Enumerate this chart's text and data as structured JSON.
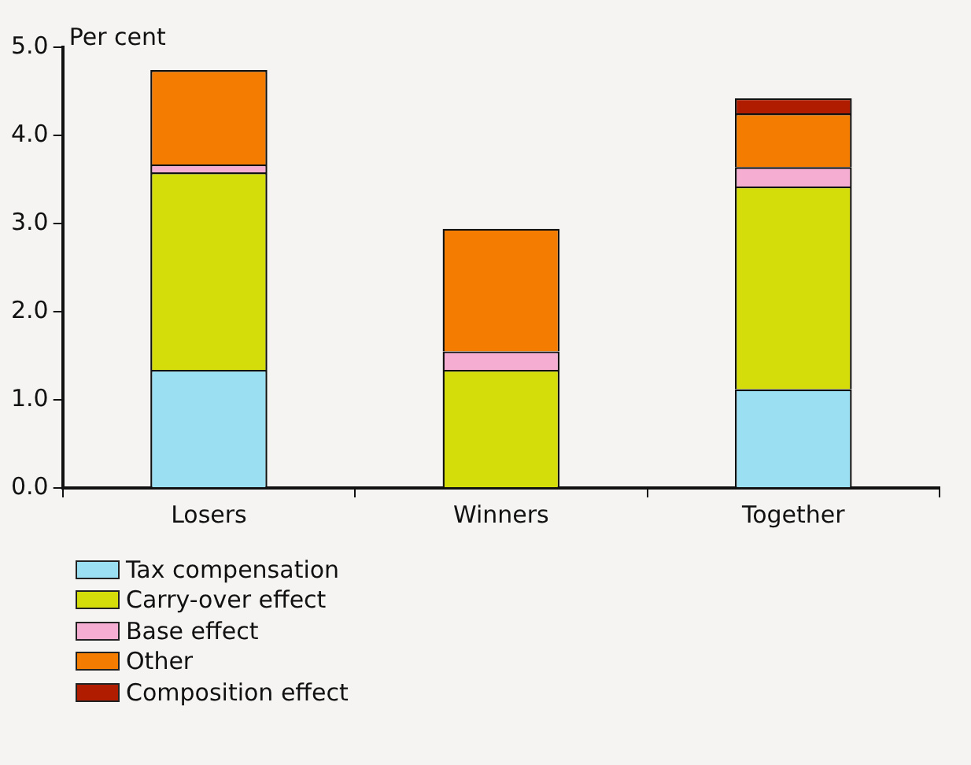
{
  "chart_data": {
    "type": "bar",
    "stacked": true,
    "ylabel": "Per cent",
    "categories": [
      "Losers",
      "Winners",
      "Together"
    ],
    "series": [
      {
        "name": "Tax compensation",
        "color": "#9ae0f2",
        "values": [
          1.34,
          0,
          1.12
        ]
      },
      {
        "name": "Carry-over effect",
        "color": "#d4dc0a",
        "values": [
          2.24,
          1.34,
          2.3
        ]
      },
      {
        "name": "Base effect",
        "color": "#f5aed2",
        "values": [
          0.09,
          0.21,
          0.22
        ]
      },
      {
        "name": "Other",
        "color": "#f47c00",
        "values": [
          1.07,
          1.39,
          0.61
        ]
      },
      {
        "name": "Composition effect",
        "color": "#b01c00",
        "values": [
          0,
          0,
          0.17
        ]
      }
    ],
    "ylim": [
      0,
      5
    ],
    "yticks": [
      {
        "value": 0,
        "label": "0.0"
      },
      {
        "value": 1,
        "label": "1.0"
      },
      {
        "value": 2,
        "label": "2.0"
      },
      {
        "value": 3,
        "label": "3.0"
      },
      {
        "value": 4,
        "label": "4.0"
      },
      {
        "value": 5,
        "label": "5.0"
      }
    ],
    "grid": false,
    "legend": "bottom left"
  }
}
